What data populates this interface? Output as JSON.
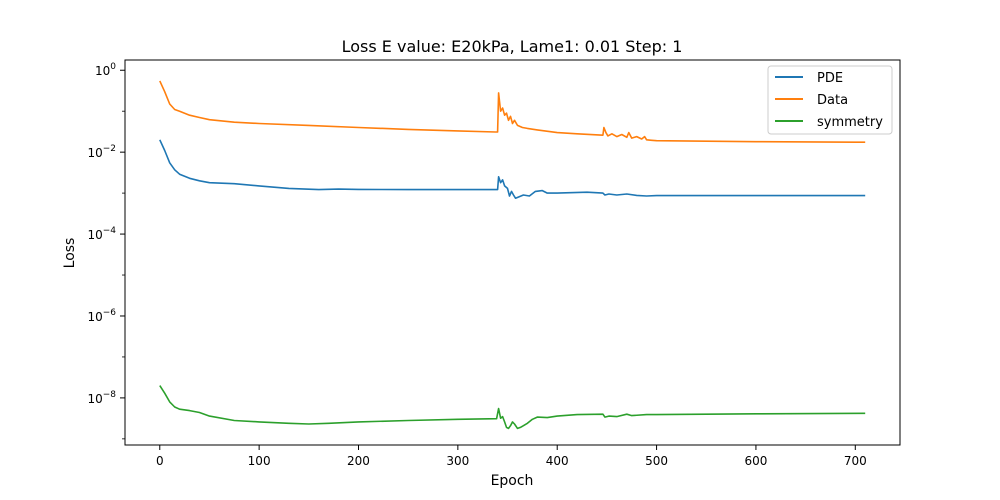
{
  "chart_data": {
    "type": "line",
    "title": "Loss E value: E20kPa, Lame1: 0.01 Step: 1",
    "xlabel": "Epoch",
    "ylabel": "Loss",
    "yscale": "log",
    "xlim": [
      -35,
      745
    ],
    "ylim_exp": [
      -9.15,
      0.25
    ],
    "x_ticks": [
      0,
      100,
      200,
      300,
      400,
      500,
      600,
      700
    ],
    "y_ticks": [
      {
        "exp": 0,
        "label": "10^0"
      },
      {
        "exp": -2,
        "label": "10^-2"
      },
      {
        "exp": -4,
        "label": "10^-4"
      },
      {
        "exp": -6,
        "label": "10^-6"
      },
      {
        "exp": -8,
        "label": "10^-8"
      }
    ],
    "grid": false,
    "legend_position": "upper right",
    "series": [
      {
        "name": "PDE",
        "color": "#1f77b4",
        "points": [
          [
            0,
            0.02
          ],
          [
            5,
            0.011
          ],
          [
            10,
            0.0055
          ],
          [
            15,
            0.0037
          ],
          [
            20,
            0.0029
          ],
          [
            30,
            0.0023
          ],
          [
            40,
            0.002
          ],
          [
            50,
            0.0018
          ],
          [
            75,
            0.0017
          ],
          [
            100,
            0.0015
          ],
          [
            130,
            0.0013
          ],
          [
            160,
            0.00122
          ],
          [
            180,
            0.00125
          ],
          [
            200,
            0.00123
          ],
          [
            250,
            0.00122
          ],
          [
            300,
            0.00122
          ],
          [
            340,
            0.00122
          ],
          [
            341,
            0.0025
          ],
          [
            343,
            0.0018
          ],
          [
            345,
            0.0021
          ],
          [
            347,
            0.0015
          ],
          [
            350,
            0.0013
          ],
          [
            352,
            0.00085
          ],
          [
            354,
            0.0011
          ],
          [
            356,
            0.0009
          ],
          [
            358,
            0.00075
          ],
          [
            362,
            0.00082
          ],
          [
            366,
            0.0009
          ],
          [
            372,
            0.00085
          ],
          [
            378,
            0.0011
          ],
          [
            385,
            0.00115
          ],
          [
            390,
            0.001
          ],
          [
            400,
            0.001
          ],
          [
            430,
            0.00105
          ],
          [
            446,
            0.001
          ],
          [
            448,
            0.0009
          ],
          [
            452,
            0.00095
          ],
          [
            460,
            0.0009
          ],
          [
            470,
            0.00095
          ],
          [
            480,
            0.00088
          ],
          [
            490,
            0.00085
          ],
          [
            500,
            0.00087
          ],
          [
            600,
            0.00087
          ],
          [
            710,
            0.00087
          ]
        ]
      },
      {
        "name": "Data",
        "color": "#ff7f0e",
        "points": [
          [
            0,
            0.55
          ],
          [
            5,
            0.3
          ],
          [
            10,
            0.15
          ],
          [
            15,
            0.11
          ],
          [
            20,
            0.1
          ],
          [
            30,
            0.08
          ],
          [
            40,
            0.07
          ],
          [
            50,
            0.062
          ],
          [
            75,
            0.054
          ],
          [
            100,
            0.05
          ],
          [
            150,
            0.045
          ],
          [
            200,
            0.04
          ],
          [
            250,
            0.036
          ],
          [
            300,
            0.033
          ],
          [
            338,
            0.031
          ],
          [
            340,
            0.031
          ],
          [
            341,
            0.28
          ],
          [
            343,
            0.1
          ],
          [
            345,
            0.12
          ],
          [
            347,
            0.08
          ],
          [
            349,
            0.09
          ],
          [
            351,
            0.06
          ],
          [
            353,
            0.075
          ],
          [
            355,
            0.05
          ],
          [
            357,
            0.06
          ],
          [
            360,
            0.045
          ],
          [
            365,
            0.04
          ],
          [
            370,
            0.038
          ],
          [
            380,
            0.035
          ],
          [
            400,
            0.03
          ],
          [
            420,
            0.028
          ],
          [
            446,
            0.026
          ],
          [
            447,
            0.04
          ],
          [
            449,
            0.03
          ],
          [
            451,
            0.025
          ],
          [
            455,
            0.028
          ],
          [
            460,
            0.024
          ],
          [
            465,
            0.027
          ],
          [
            470,
            0.023
          ],
          [
            472,
            0.03
          ],
          [
            475,
            0.022
          ],
          [
            480,
            0.024
          ],
          [
            485,
            0.021
          ],
          [
            488,
            0.024
          ],
          [
            490,
            0.02
          ],
          [
            495,
            0.0195
          ],
          [
            500,
            0.019
          ],
          [
            600,
            0.018
          ],
          [
            700,
            0.0175
          ],
          [
            710,
            0.0175
          ]
        ]
      },
      {
        "name": "symmetry",
        "color": "#2ca02c",
        "points": [
          [
            0,
            2e-08
          ],
          [
            5,
            1.3e-08
          ],
          [
            10,
            8e-09
          ],
          [
            15,
            6e-09
          ],
          [
            20,
            5.3e-09
          ],
          [
            30,
            4.9e-09
          ],
          [
            40,
            4.4e-09
          ],
          [
            50,
            3.6e-09
          ],
          [
            75,
            2.8e-09
          ],
          [
            100,
            2.6e-09
          ],
          [
            130,
            2.4e-09
          ],
          [
            150,
            2.3e-09
          ],
          [
            170,
            2.4e-09
          ],
          [
            200,
            2.6e-09
          ],
          [
            250,
            2.8e-09
          ],
          [
            300,
            3e-09
          ],
          [
            339,
            3.1e-09
          ],
          [
            341,
            5.5e-09
          ],
          [
            343,
            3.2e-09
          ],
          [
            345,
            3.5e-09
          ],
          [
            347,
            2.6e-09
          ],
          [
            349,
            1.9e-09
          ],
          [
            351,
            1.8e-09
          ],
          [
            353,
            2.1e-09
          ],
          [
            355,
            2.6e-09
          ],
          [
            357,
            2.3e-09
          ],
          [
            360,
            1.8e-09
          ],
          [
            363,
            1.9e-09
          ],
          [
            366,
            2.1e-09
          ],
          [
            370,
            2.4e-09
          ],
          [
            375,
            3e-09
          ],
          [
            380,
            3.4e-09
          ],
          [
            390,
            3.3e-09
          ],
          [
            400,
            3.6e-09
          ],
          [
            420,
            3.9e-09
          ],
          [
            446,
            4e-09
          ],
          [
            448,
            3.4e-09
          ],
          [
            452,
            3.6e-09
          ],
          [
            460,
            3.5e-09
          ],
          [
            470,
            4e-09
          ],
          [
            475,
            3.7e-09
          ],
          [
            490,
            3.9e-09
          ],
          [
            500,
            3.9e-09
          ],
          [
            600,
            4.1e-09
          ],
          [
            710,
            4.2e-09
          ]
        ]
      }
    ]
  }
}
